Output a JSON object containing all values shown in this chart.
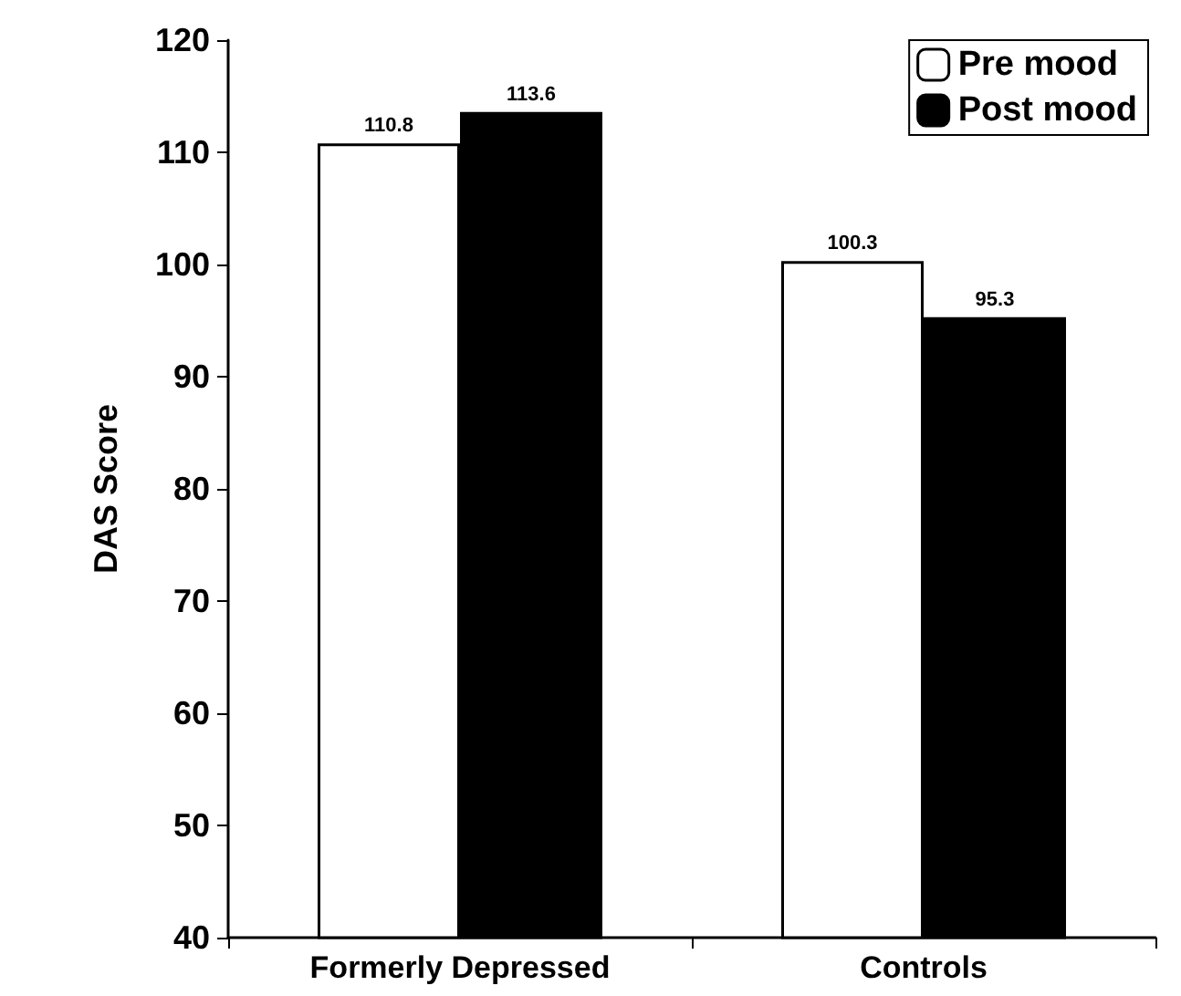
{
  "chart_data": {
    "type": "bar",
    "ylabel": "DAS Score",
    "categories": [
      "Formerly Depressed",
      "Controls"
    ],
    "series": [
      {
        "name": "Pre mood",
        "color": "#ffffff",
        "values": [
          110.8,
          100.3
        ]
      },
      {
        "name": "Post mood",
        "color": "#000000",
        "values": [
          113.6,
          95.3
        ]
      }
    ],
    "ylim": [
      40,
      120
    ],
    "yticks": [
      40,
      50,
      60,
      70,
      80,
      90,
      100,
      110,
      120
    ],
    "grid": false,
    "legend": "top right",
    "data_labels": true
  }
}
